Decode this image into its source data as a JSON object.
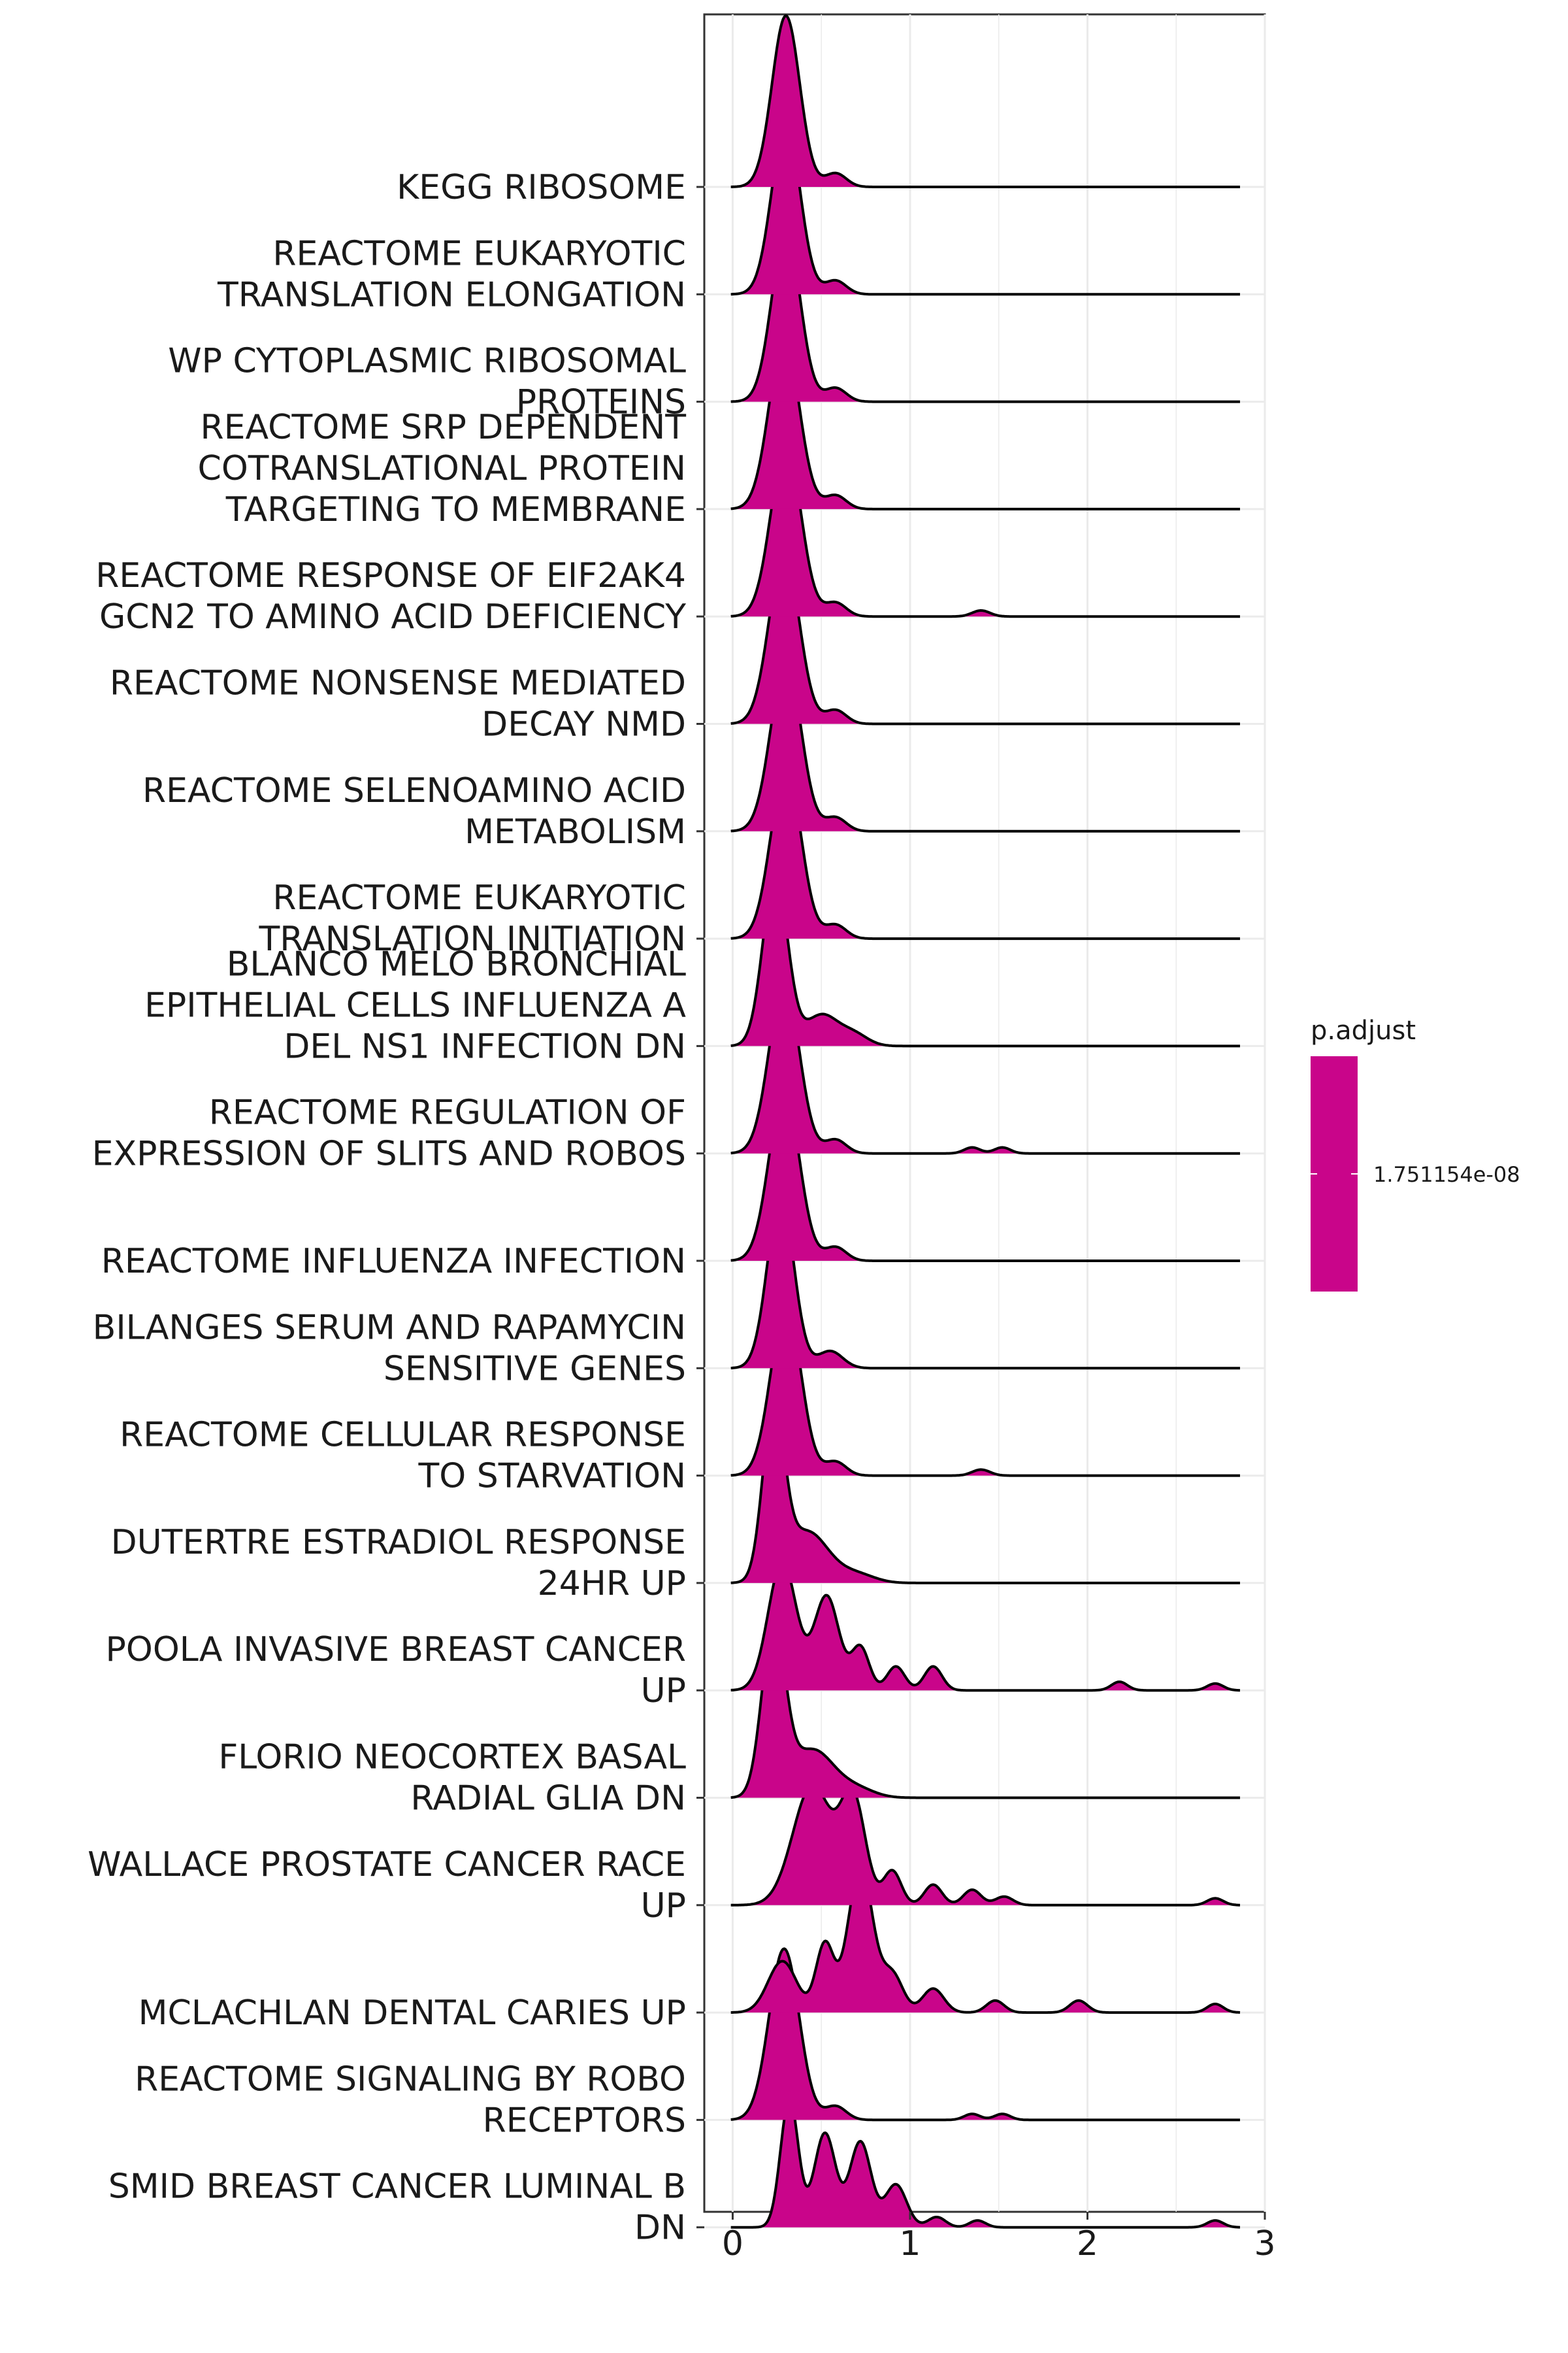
{
  "chart_data": {
    "type": "ridgeline",
    "xlim": [
      -0.16,
      3.0
    ],
    "x_ticks": [
      "0",
      "1",
      "2",
      "3"
    ],
    "grid": true,
    "fill_color": "#C9058A",
    "legend": {
      "title": "p.adjust",
      "label": "1.751154e-08",
      "color": "#C9058A",
      "placement": "right"
    },
    "series": [
      {
        "label": [
          "KEGG RIBOSOME"
        ],
        "x_end": 2.86,
        "peaks": [
          [
            0.3,
            0.078,
            1.0
          ],
          [
            0.58,
            0.06,
            0.08
          ]
        ]
      },
      {
        "label": [
          "REACTOME EUKARYOTIC",
          "TRANSLATION ELONGATION"
        ],
        "x_end": 2.86,
        "peaks": [
          [
            0.3,
            0.08,
            1.0
          ],
          [
            0.58,
            0.06,
            0.08
          ]
        ]
      },
      {
        "label": [
          "WP CYTOPLASMIC RIBOSOMAL",
          "PROTEINS"
        ],
        "x_end": 2.86,
        "peaks": [
          [
            0.3,
            0.08,
            1.0
          ],
          [
            0.58,
            0.06,
            0.08
          ]
        ]
      },
      {
        "label": [
          "REACTOME SRP DEPENDENT",
          "COTRANSLATIONAL PROTEIN",
          "TARGETING TO MEMBRANE"
        ],
        "x_end": 2.86,
        "peaks": [
          [
            0.29,
            0.085,
            1.0
          ],
          [
            0.58,
            0.06,
            0.08
          ]
        ]
      },
      {
        "label": [
          "REACTOME RESPONSE OF EIF2AK4",
          "GCN2 TO AMINO ACID DEFICIENCY"
        ],
        "x_end": 2.86,
        "peaks": [
          [
            0.3,
            0.085,
            1.0
          ],
          [
            0.58,
            0.06,
            0.08
          ],
          [
            1.4,
            0.05,
            0.035
          ]
        ]
      },
      {
        "label": [
          "REACTOME NONSENSE MEDIATED",
          "DECAY NMD"
        ],
        "x_end": 2.86,
        "peaks": [
          [
            0.29,
            0.085,
            1.0
          ],
          [
            0.58,
            0.06,
            0.08
          ]
        ]
      },
      {
        "label": [
          "REACTOME SELENOAMINO ACID",
          "METABOLISM"
        ],
        "x_end": 2.86,
        "peaks": [
          [
            0.3,
            0.085,
            1.0
          ],
          [
            0.58,
            0.06,
            0.08
          ]
        ]
      },
      {
        "label": [
          "REACTOME EUKARYOTIC",
          "TRANSLATION INITIATION"
        ],
        "x_end": 2.86,
        "peaks": [
          [
            0.3,
            0.085,
            1.0
          ],
          [
            0.58,
            0.06,
            0.08
          ]
        ]
      },
      {
        "label": [
          "BLANCO MELO BRONCHIAL",
          "EPITHELIAL CELLS INFLUENZA A",
          "DEL NS1 INFECTION DN"
        ],
        "x_end": 2.86,
        "peaks": [
          [
            0.24,
            0.07,
            1.0
          ],
          [
            0.5,
            0.09,
            0.18
          ],
          [
            0.68,
            0.08,
            0.07
          ]
        ]
      },
      {
        "label": [
          "REACTOME REGULATION OF",
          "EXPRESSION OF SLITS AND ROBOS"
        ],
        "x_end": 2.86,
        "peaks": [
          [
            0.29,
            0.085,
            1.0
          ],
          [
            0.58,
            0.06,
            0.08
          ],
          [
            1.35,
            0.045,
            0.035
          ],
          [
            1.52,
            0.045,
            0.035
          ]
        ]
      },
      {
        "label": [
          "REACTOME INFLUENZA INFECTION"
        ],
        "x_end": 2.86,
        "peaks": [
          [
            0.29,
            0.085,
            1.0
          ],
          [
            0.58,
            0.06,
            0.08
          ]
        ]
      },
      {
        "label": [
          "BILANGES SERUM AND RAPAMYCIN",
          "SENSITIVE GENES"
        ],
        "x_end": 2.86,
        "peaks": [
          [
            0.27,
            0.075,
            1.0
          ],
          [
            0.55,
            0.07,
            0.1
          ]
        ]
      },
      {
        "label": [
          "REACTOME CELLULAR RESPONSE",
          "TO STARVATION"
        ],
        "x_end": 2.86,
        "peaks": [
          [
            0.3,
            0.085,
            1.0
          ],
          [
            0.58,
            0.06,
            0.08
          ],
          [
            1.4,
            0.05,
            0.035
          ]
        ]
      },
      {
        "label": [
          "DUTERTRE ESTRADIOL RESPONSE",
          "24HR UP"
        ],
        "x_end": 2.86,
        "peaks": [
          [
            0.23,
            0.06,
            1.0
          ],
          [
            0.42,
            0.12,
            0.3
          ],
          [
            0.7,
            0.1,
            0.05
          ]
        ]
      },
      {
        "label": [
          "POOLA INVASIVE BREAST CANCER",
          "UP"
        ],
        "x_end": 2.86,
        "peaks": [
          [
            0.28,
            0.08,
            0.75
          ],
          [
            0.53,
            0.07,
            0.55
          ],
          [
            0.72,
            0.05,
            0.25
          ],
          [
            0.92,
            0.05,
            0.14
          ],
          [
            1.13,
            0.05,
            0.14
          ],
          [
            2.18,
            0.045,
            0.05
          ],
          [
            2.72,
            0.045,
            0.04
          ]
        ]
      },
      {
        "label": [
          "FLORIO NEOCORTEX BASAL",
          "RADIAL GLIA DN"
        ],
        "x_end": 2.86,
        "peaks": [
          [
            0.23,
            0.065,
            1.0
          ],
          [
            0.45,
            0.12,
            0.28
          ],
          [
            0.7,
            0.1,
            0.05
          ]
        ]
      },
      {
        "label": [
          "WALLACE PROSTATE CANCER RACE",
          "UP"
        ],
        "x_end": 2.86,
        "peaks": [
          [
            0.45,
            0.11,
            0.7
          ],
          [
            0.68,
            0.07,
            0.6
          ],
          [
            0.9,
            0.05,
            0.2
          ],
          [
            1.13,
            0.05,
            0.12
          ],
          [
            1.35,
            0.05,
            0.09
          ],
          [
            1.53,
            0.05,
            0.05
          ],
          [
            2.72,
            0.045,
            0.04
          ]
        ]
      },
      {
        "label": [
          "MCLACHLAN DENTAL CARIES UP"
        ],
        "x_end": 2.86,
        "peaks": [
          [
            0.28,
            0.08,
            0.3
          ],
          [
            0.52,
            0.05,
            0.4
          ],
          [
            0.72,
            0.07,
            0.85
          ],
          [
            0.9,
            0.06,
            0.22
          ],
          [
            1.13,
            0.06,
            0.14
          ],
          [
            1.48,
            0.05,
            0.07
          ],
          [
            1.95,
            0.05,
            0.07
          ],
          [
            2.72,
            0.045,
            0.05
          ]
        ]
      },
      {
        "label": [
          "REACTOME SIGNALING BY ROBO",
          "RECEPTORS"
        ],
        "x_end": 2.86,
        "peaks": [
          [
            0.29,
            0.085,
            1.0
          ],
          [
            0.58,
            0.06,
            0.08
          ],
          [
            1.35,
            0.045,
            0.035
          ],
          [
            1.52,
            0.045,
            0.035
          ]
        ]
      },
      {
        "label": [
          "SMID BREAST CANCER LUMINAL B",
          "DN"
        ],
        "x_end": 2.86,
        "peaks": [
          [
            0.32,
            0.05,
            0.75
          ],
          [
            0.52,
            0.06,
            0.55
          ],
          [
            0.72,
            0.06,
            0.5
          ],
          [
            0.92,
            0.06,
            0.25
          ],
          [
            1.15,
            0.05,
            0.06
          ],
          [
            1.38,
            0.045,
            0.04
          ],
          [
            2.72,
            0.045,
            0.04
          ]
        ]
      }
    ]
  }
}
